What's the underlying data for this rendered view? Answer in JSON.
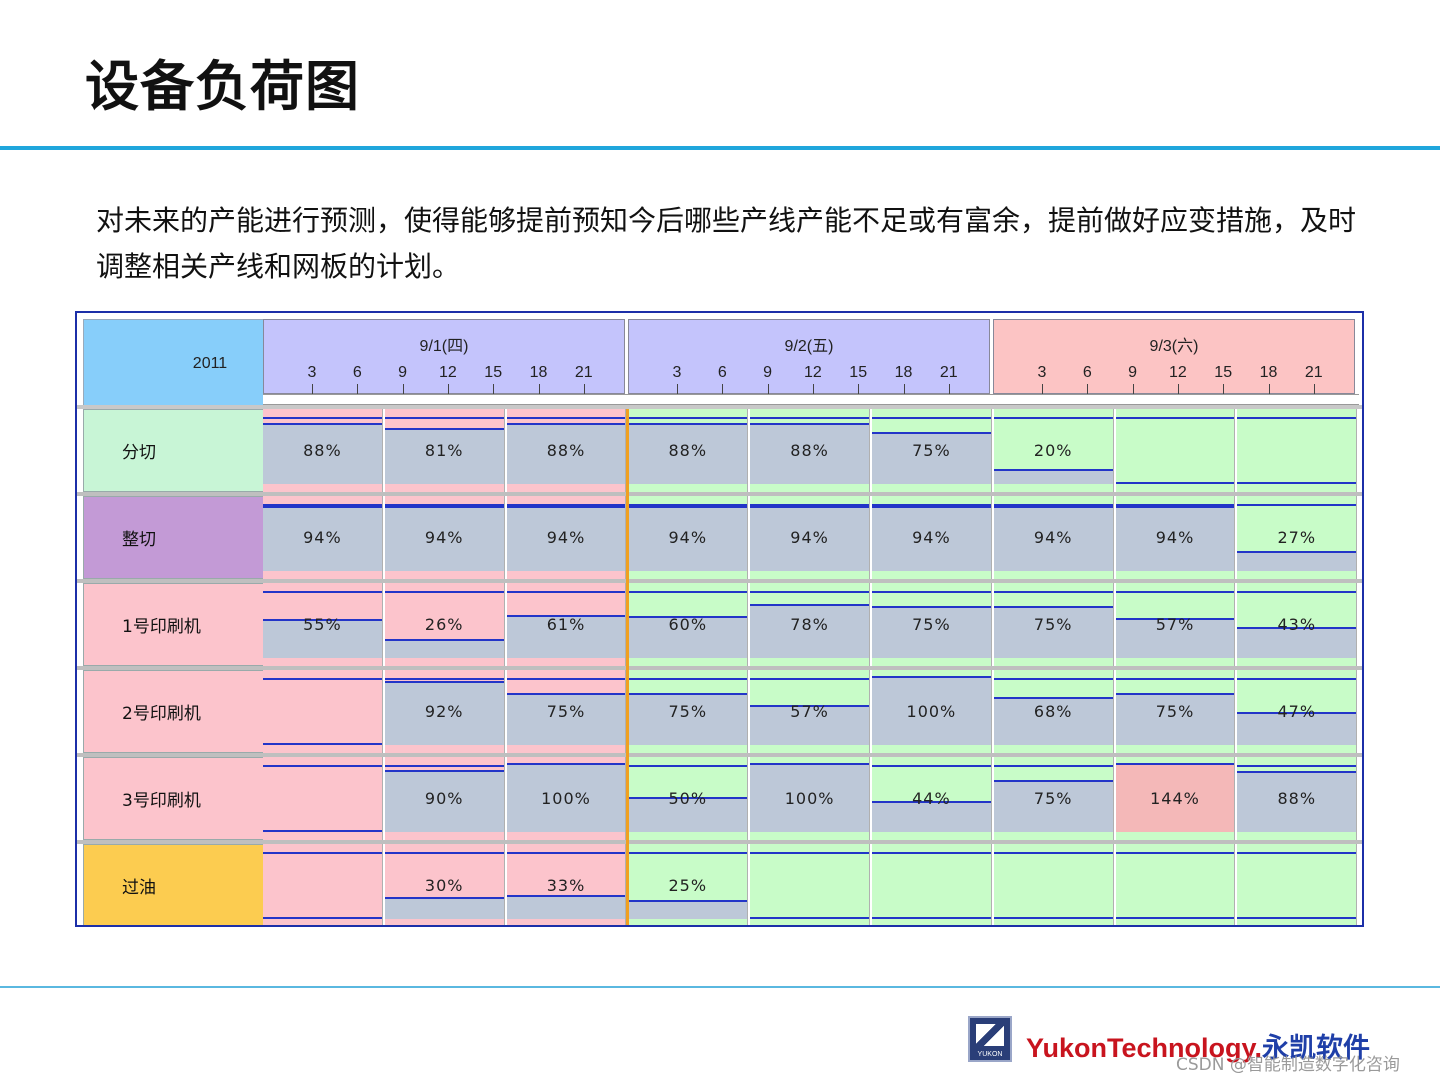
{
  "title": "设备负荷图",
  "description": "对未来的产能进行预测，使得能够提前预知今后哪些产线产能不足或有富余，提前做好应变措施，及时调整相关产线和网板的计划。",
  "gantt": {
    "year": "2011",
    "days": [
      {
        "label": "9/1(四)",
        "color": "#c4c4fc"
      },
      {
        "label": "9/2(五)",
        "color": "#c4c4fc"
      },
      {
        "label": "9/3(六)",
        "color": "#fcc4c4"
      }
    ],
    "hours": [
      "3",
      "6",
      "9",
      "12",
      "15",
      "18",
      "21"
    ],
    "rows": [
      {
        "label": "分切",
        "color": "#c8f5d6",
        "slots": [
          {
            "pct": "88%",
            "bg": "#fcc4cc",
            "load": 0.88
          },
          {
            "pct": "81%",
            "bg": "#fcc4cc",
            "load": 0.81
          },
          {
            "pct": "88%",
            "bg": "#fcc4cc",
            "load": 0.88
          },
          {
            "pct": "88%",
            "bg": "#c8fcc8",
            "load": 0.88
          },
          {
            "pct": "88%",
            "bg": "#c8fcc8",
            "load": 0.88
          },
          {
            "pct": "75%",
            "bg": "#c8fcc8",
            "load": 0.75
          },
          {
            "pct": "20%",
            "bg": "#c8fcc8",
            "load": 0.2
          },
          {
            "pct": "",
            "bg": "#c8fcc8",
            "load": 0
          },
          {
            "pct": "",
            "bg": "#c8fcc8",
            "load": 0
          }
        ]
      },
      {
        "label": "整切",
        "color": "#c39ad6",
        "slots": [
          {
            "pct": "94%",
            "bg": "#fcc4cc",
            "load": 0.94
          },
          {
            "pct": "94%",
            "bg": "#fcc4cc",
            "load": 0.94
          },
          {
            "pct": "94%",
            "bg": "#fcc4cc",
            "load": 0.94
          },
          {
            "pct": "94%",
            "bg": "#c8fcc8",
            "load": 0.94
          },
          {
            "pct": "94%",
            "bg": "#c8fcc8",
            "load": 0.94
          },
          {
            "pct": "94%",
            "bg": "#c8fcc8",
            "load": 0.94
          },
          {
            "pct": "94%",
            "bg": "#c8fcc8",
            "load": 0.94
          },
          {
            "pct": "94%",
            "bg": "#c8fcc8",
            "load": 0.94
          },
          {
            "pct": "27%",
            "bg": "#c8fcc8",
            "load": 0.27
          }
        ]
      },
      {
        "label": "1号印刷机",
        "color": "#fcc4cc",
        "slots": [
          {
            "pct": "55%",
            "bg": "#fcc4cc",
            "load": 0.55
          },
          {
            "pct": "26%",
            "bg": "#fcc4cc",
            "load": 0.26
          },
          {
            "pct": "61%",
            "bg": "#fcc4cc",
            "load": 0.61
          },
          {
            "pct": "60%",
            "bg": "#c8fcc8",
            "load": 0.6
          },
          {
            "pct": "78%",
            "bg": "#c8fcc8",
            "load": 0.78
          },
          {
            "pct": "75%",
            "bg": "#c8fcc8",
            "load": 0.75
          },
          {
            "pct": "75%",
            "bg": "#c8fcc8",
            "load": 0.75
          },
          {
            "pct": "57%",
            "bg": "#c8fcc8",
            "load": 0.57
          },
          {
            "pct": "43%",
            "bg": "#c8fcc8",
            "load": 0.43
          }
        ]
      },
      {
        "label": "2号印刷机",
        "color": "#fcc4cc",
        "slots": [
          {
            "pct": "",
            "bg": "#fcc4cc",
            "load": 0
          },
          {
            "pct": "92%",
            "bg": "#fcc4cc",
            "load": 0.92
          },
          {
            "pct": "75%",
            "bg": "#fcc4cc",
            "load": 0.75
          },
          {
            "pct": "75%",
            "bg": "#c8fcc8",
            "load": 0.75
          },
          {
            "pct": "57%",
            "bg": "#c8fcc8",
            "load": 0.57
          },
          {
            "pct": "100%",
            "bg": "#c8fcc8",
            "load": 1.0
          },
          {
            "pct": "68%",
            "bg": "#c8fcc8",
            "load": 0.68
          },
          {
            "pct": "75%",
            "bg": "#c8fcc8",
            "load": 0.75
          },
          {
            "pct": "47%",
            "bg": "#c8fcc8",
            "load": 0.47
          }
        ]
      },
      {
        "label": "3号印刷机",
        "color": "#fcc4cc",
        "slots": [
          {
            "pct": "",
            "bg": "#fcc4cc",
            "load": 0
          },
          {
            "pct": "90%",
            "bg": "#fcc4cc",
            "load": 0.9
          },
          {
            "pct": "100%",
            "bg": "#fcc4cc",
            "load": 1.0
          },
          {
            "pct": "50%",
            "bg": "#c8fcc8",
            "load": 0.5
          },
          {
            "pct": "100%",
            "bg": "#c8fcc8",
            "load": 1.0
          },
          {
            "pct": "44%",
            "bg": "#c8fcc8",
            "load": 0.44
          },
          {
            "pct": "75%",
            "bg": "#c8fcc8",
            "load": 0.75
          },
          {
            "pct": "144%",
            "bg": "#c8fcc8",
            "load": 1.44,
            "over": "#f4b8b8"
          },
          {
            "pct": "88%",
            "bg": "#c8fcc8",
            "load": 0.88
          }
        ]
      },
      {
        "label": "过油",
        "color": "#fccc50",
        "slots": [
          {
            "pct": "",
            "bg": "#fcc4cc",
            "load": 0
          },
          {
            "pct": "30%",
            "bg": "#fcc4cc",
            "load": 0.3
          },
          {
            "pct": "33%",
            "bg": "#fcc4cc",
            "load": 0.33
          },
          {
            "pct": "25%",
            "bg": "#c8fcc8",
            "load": 0.25
          },
          {
            "pct": "",
            "bg": "#c8fcc8",
            "load": 0
          },
          {
            "pct": "",
            "bg": "#c8fcc8",
            "load": 0
          },
          {
            "pct": "",
            "bg": "#c8fcc8",
            "load": 0
          },
          {
            "pct": "",
            "bg": "#c8fcc8",
            "load": 0
          },
          {
            "pct": "",
            "bg": "#c8fcc8",
            "load": 0
          }
        ]
      }
    ]
  },
  "footer": {
    "logo_text": "YUKON",
    "brand_en": "YukonTechnology.",
    "brand_cn": "永凯软件",
    "watermark": "CSDN @智能制造数字化咨询",
    "logo_icon": "yukon-logo-icon"
  }
}
